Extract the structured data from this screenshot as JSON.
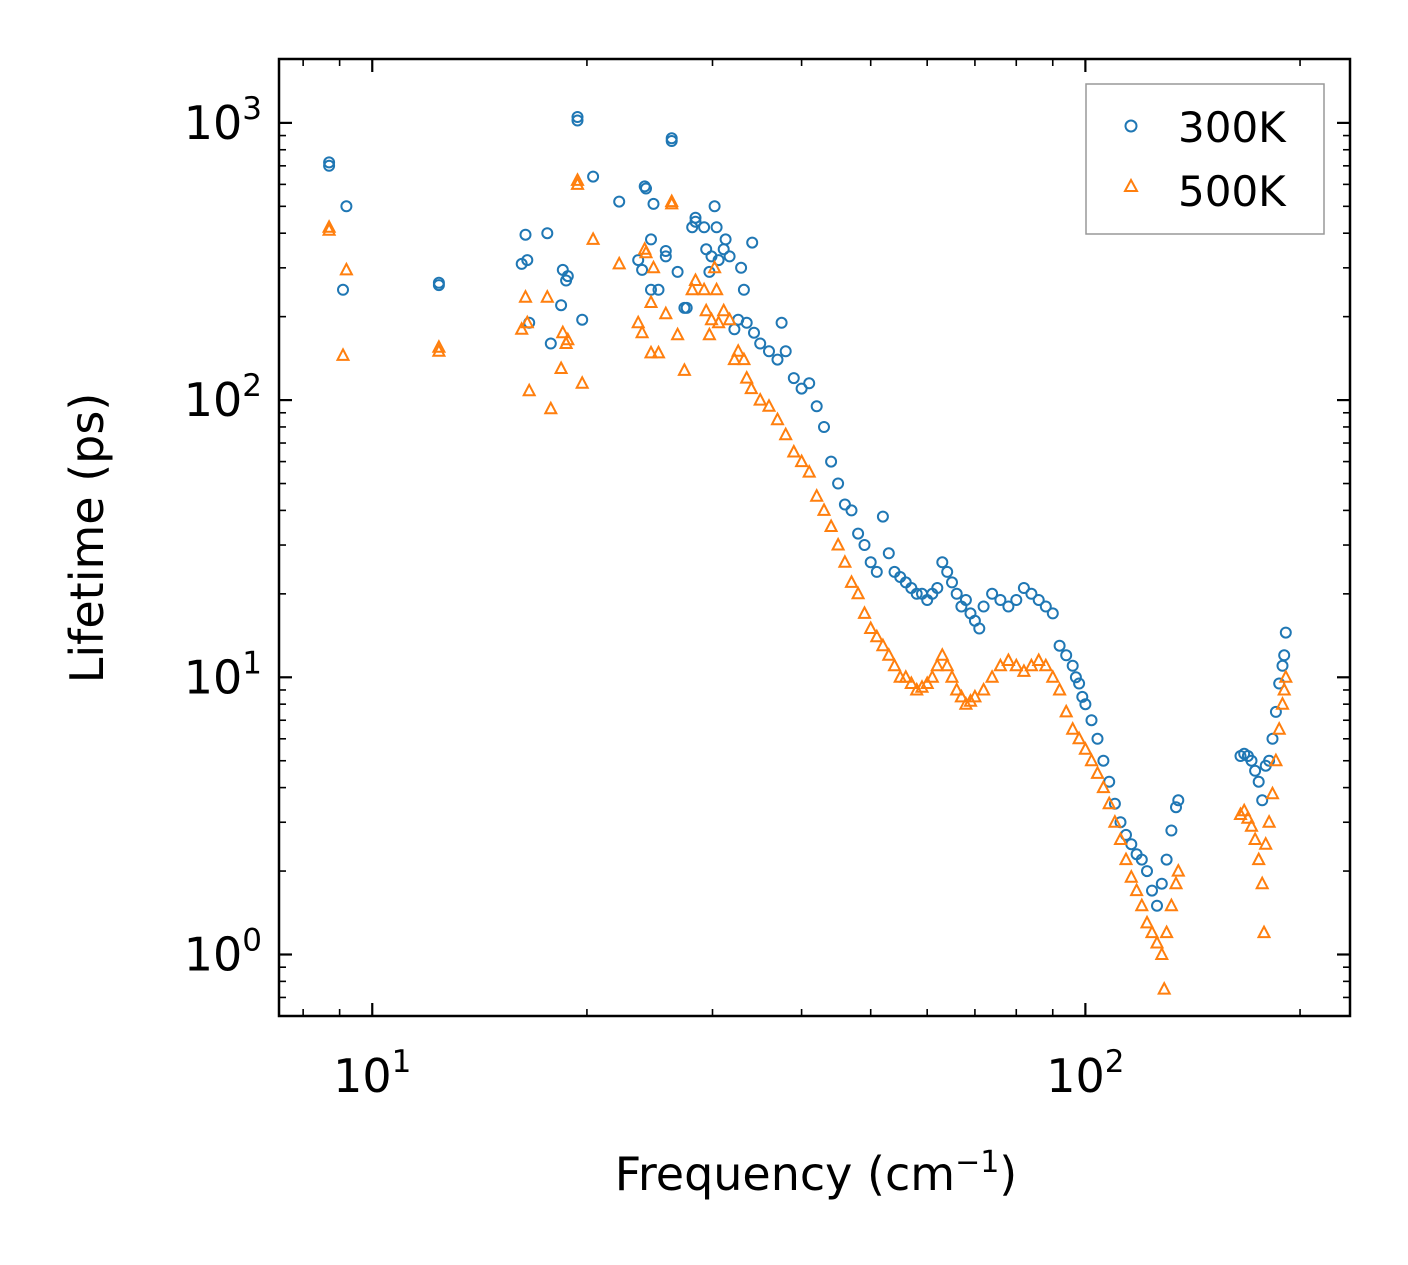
{
  "chart_data": {
    "type": "scatter",
    "title": "",
    "xlabel_base": "Frequency (cm",
    "xlabel_sup": "−1",
    "xlabel_tail": ")",
    "ylabel": "Lifetime (ps)",
    "xscale": "log",
    "yscale": "log",
    "xlim": [
      7.4,
      235
    ],
    "ylim": [
      0.6,
      1700
    ],
    "x_ticks": [
      {
        "value": 10,
        "base": "10",
        "exp": "1"
      },
      {
        "value": 100,
        "base": "10",
        "exp": "2"
      }
    ],
    "y_ticks": [
      {
        "value": 1,
        "base": "10",
        "exp": "0"
      },
      {
        "value": 10,
        "base": "10",
        "exp": "1"
      },
      {
        "value": 100,
        "base": "10",
        "exp": "2"
      },
      {
        "value": 1000,
        "base": "10",
        "exp": "3"
      }
    ],
    "legend_position": "top-right",
    "series": [
      {
        "name": "300K",
        "marker": "circle-open",
        "color": "#1f77b4",
        "points": [
          [
            8.7,
            720
          ],
          [
            8.7,
            700
          ],
          [
            9.2,
            500
          ],
          [
            9.1,
            250
          ],
          [
            12.4,
            260
          ],
          [
            12.4,
            265
          ],
          [
            16.2,
            310
          ],
          [
            16.4,
            395
          ],
          [
            16.5,
            320
          ],
          [
            16.6,
            190
          ],
          [
            17.6,
            400
          ],
          [
            17.8,
            160
          ],
          [
            18.4,
            220
          ],
          [
            18.5,
            295
          ],
          [
            18.7,
            270
          ],
          [
            18.8,
            280
          ],
          [
            19.4,
            1050
          ],
          [
            19.4,
            1020
          ],
          [
            19.7,
            195
          ],
          [
            20.4,
            640
          ],
          [
            22.2,
            520
          ],
          [
            23.6,
            320
          ],
          [
            23.9,
            295
          ],
          [
            24.1,
            590
          ],
          [
            24.2,
            580
          ],
          [
            24.6,
            380
          ],
          [
            24.6,
            250
          ],
          [
            24.8,
            510
          ],
          [
            25.2,
            250
          ],
          [
            25.8,
            345
          ],
          [
            25.8,
            330
          ],
          [
            26.3,
            880
          ],
          [
            26.3,
            860
          ],
          [
            26.8,
            290
          ],
          [
            27.4,
            215
          ],
          [
            27.6,
            215
          ],
          [
            28.1,
            420
          ],
          [
            28.4,
            455
          ],
          [
            28.4,
            440
          ],
          [
            29.2,
            420
          ],
          [
            29.4,
            350
          ],
          [
            29.7,
            290
          ],
          [
            29.9,
            330
          ],
          [
            30.2,
            500
          ],
          [
            30.4,
            420
          ],
          [
            30.6,
            320
          ],
          [
            31.1,
            350
          ],
          [
            31.3,
            380
          ],
          [
            31.7,
            330
          ],
          [
            32.2,
            180
          ],
          [
            32.6,
            195
          ],
          [
            32.9,
            300
          ],
          [
            33.2,
            250
          ],
          [
            33.5,
            190
          ],
          [
            34.1,
            370
          ],
          [
            34.3,
            175
          ],
          [
            35,
            160
          ],
          [
            36,
            150
          ],
          [
            37,
            140
          ],
          [
            37.5,
            190
          ],
          [
            38,
            150
          ],
          [
            39,
            120
          ],
          [
            40,
            110
          ],
          [
            41,
            115
          ],
          [
            42,
            95
          ],
          [
            43,
            80
          ],
          [
            44,
            60
          ],
          [
            45,
            50
          ],
          [
            46,
            42
          ],
          [
            47,
            40
          ],
          [
            48,
            33
          ],
          [
            49,
            30
          ],
          [
            50,
            26
          ],
          [
            51,
            24
          ],
          [
            52,
            38
          ],
          [
            53,
            28
          ],
          [
            54,
            24
          ],
          [
            55,
            23
          ],
          [
            56,
            22
          ],
          [
            57,
            21
          ],
          [
            58,
            20
          ],
          [
            59,
            20
          ],
          [
            60,
            19
          ],
          [
            61,
            20
          ],
          [
            62,
            21
          ],
          [
            63,
            26
          ],
          [
            64,
            24
          ],
          [
            65,
            22
          ],
          [
            66,
            20
          ],
          [
            67,
            18
          ],
          [
            68,
            19
          ],
          [
            69,
            17
          ],
          [
            70,
            16
          ],
          [
            71,
            15
          ],
          [
            72,
            18
          ],
          [
            74,
            20
          ],
          [
            76,
            19
          ],
          [
            78,
            18
          ],
          [
            80,
            19
          ],
          [
            82,
            21
          ],
          [
            84,
            20
          ],
          [
            86,
            19
          ],
          [
            88,
            18
          ],
          [
            90,
            17
          ],
          [
            92,
            13
          ],
          [
            94,
            12
          ],
          [
            96,
            11
          ],
          [
            97,
            10
          ],
          [
            98,
            9.5
          ],
          [
            99,
            8.5
          ],
          [
            100,
            8
          ],
          [
            102,
            7
          ],
          [
            104,
            6
          ],
          [
            106,
            5
          ],
          [
            108,
            4.2
          ],
          [
            110,
            3.5
          ],
          [
            112,
            3
          ],
          [
            114,
            2.7
          ],
          [
            116,
            2.5
          ],
          [
            118,
            2.3
          ],
          [
            120,
            2.2
          ],
          [
            122,
            2
          ],
          [
            124,
            1.7
          ],
          [
            126,
            1.5
          ],
          [
            128,
            1.8
          ],
          [
            130,
            2.2
          ],
          [
            132,
            2.8
          ],
          [
            134,
            3.4
          ],
          [
            135,
            3.6
          ],
          [
            165,
            5.2
          ],
          [
            167,
            5.3
          ],
          [
            169,
            5.2
          ],
          [
            171,
            5.0
          ],
          [
            173,
            4.6
          ],
          [
            175,
            4.2
          ],
          [
            177,
            3.6
          ],
          [
            179,
            4.8
          ],
          [
            181,
            5.0
          ],
          [
            183,
            6.0
          ],
          [
            185,
            7.5
          ],
          [
            187,
            9.5
          ],
          [
            189,
            11
          ],
          [
            190,
            12
          ],
          [
            191,
            14.5
          ]
        ]
      },
      {
        "name": "500K",
        "marker": "triangle-open",
        "color": "#ff7f0e",
        "points": [
          [
            8.7,
            420
          ],
          [
            8.7,
            410
          ],
          [
            9.2,
            295
          ],
          [
            9.1,
            145
          ],
          [
            12.4,
            150
          ],
          [
            12.4,
            155
          ],
          [
            16.2,
            180
          ],
          [
            16.4,
            235
          ],
          [
            16.5,
            190
          ],
          [
            16.6,
            108
          ],
          [
            17.6,
            235
          ],
          [
            17.8,
            93
          ],
          [
            18.4,
            130
          ],
          [
            18.5,
            175
          ],
          [
            18.7,
            160
          ],
          [
            18.8,
            165
          ],
          [
            19.4,
            620
          ],
          [
            19.4,
            600
          ],
          [
            19.7,
            115
          ],
          [
            20.4,
            380
          ],
          [
            22.2,
            310
          ],
          [
            23.6,
            190
          ],
          [
            23.9,
            175
          ],
          [
            24.1,
            350
          ],
          [
            24.2,
            340
          ],
          [
            24.6,
            225
          ],
          [
            24.6,
            148
          ],
          [
            24.8,
            300
          ],
          [
            25.2,
            148
          ],
          [
            25.8,
            205
          ],
          [
            26.3,
            520
          ],
          [
            26.3,
            510
          ],
          [
            26.8,
            172
          ],
          [
            27.4,
            128
          ],
          [
            28.1,
            250
          ],
          [
            28.4,
            270
          ],
          [
            29.2,
            250
          ],
          [
            29.4,
            210
          ],
          [
            29.7,
            172
          ],
          [
            29.9,
            195
          ],
          [
            30.2,
            300
          ],
          [
            30.4,
            250
          ],
          [
            30.6,
            190
          ],
          [
            31.1,
            210
          ],
          [
            31.7,
            195
          ],
          [
            32.2,
            140
          ],
          [
            32.6,
            150
          ],
          [
            33.2,
            140
          ],
          [
            33.5,
            120
          ],
          [
            34,
            110
          ],
          [
            35,
            100
          ],
          [
            36,
            95
          ],
          [
            37,
            85
          ],
          [
            38,
            75
          ],
          [
            39,
            65
          ],
          [
            40,
            60
          ],
          [
            41,
            55
          ],
          [
            42,
            45
          ],
          [
            43,
            40
          ],
          [
            44,
            35
          ],
          [
            45,
            30
          ],
          [
            46,
            26
          ],
          [
            47,
            22
          ],
          [
            48,
            20
          ],
          [
            49,
            17
          ],
          [
            50,
            15
          ],
          [
            51,
            14
          ],
          [
            52,
            13
          ],
          [
            53,
            12
          ],
          [
            54,
            11
          ],
          [
            55,
            10
          ],
          [
            56,
            10
          ],
          [
            57,
            9.5
          ],
          [
            58,
            9
          ],
          [
            59,
            9.2
          ],
          [
            60,
            9.5
          ],
          [
            61,
            10
          ],
          [
            62,
            11
          ],
          [
            63,
            12
          ],
          [
            64,
            11
          ],
          [
            65,
            10
          ],
          [
            66,
            9
          ],
          [
            67,
            8.5
          ],
          [
            68,
            8
          ],
          [
            69,
            8.2
          ],
          [
            70,
            8.5
          ],
          [
            72,
            9
          ],
          [
            74,
            10
          ],
          [
            76,
            11
          ],
          [
            78,
            11.5
          ],
          [
            80,
            11
          ],
          [
            82,
            10.5
          ],
          [
            84,
            11
          ],
          [
            86,
            11.5
          ],
          [
            88,
            11
          ],
          [
            90,
            10
          ],
          [
            92,
            9
          ],
          [
            94,
            7.5
          ],
          [
            96,
            6.5
          ],
          [
            98,
            6
          ],
          [
            100,
            5.5
          ],
          [
            102,
            5
          ],
          [
            104,
            4.5
          ],
          [
            106,
            4
          ],
          [
            108,
            3.5
          ],
          [
            110,
            3
          ],
          [
            112,
            2.6
          ],
          [
            114,
            2.2
          ],
          [
            116,
            1.9
          ],
          [
            118,
            1.7
          ],
          [
            120,
            1.5
          ],
          [
            122,
            1.3
          ],
          [
            124,
            1.2
          ],
          [
            126,
            1.1
          ],
          [
            128,
            1.0
          ],
          [
            129,
            0.75
          ],
          [
            130,
            1.2
          ],
          [
            132,
            1.5
          ],
          [
            134,
            1.8
          ],
          [
            135,
            2.0
          ],
          [
            165,
            3.2
          ],
          [
            167,
            3.3
          ],
          [
            169,
            3.1
          ],
          [
            171,
            2.9
          ],
          [
            173,
            2.6
          ],
          [
            175,
            2.2
          ],
          [
            177,
            1.8
          ],
          [
            178,
            1.2
          ],
          [
            179,
            2.5
          ],
          [
            181,
            3.0
          ],
          [
            183,
            3.8
          ],
          [
            185,
            5.0
          ],
          [
            187,
            6.5
          ],
          [
            189,
            8.0
          ],
          [
            190,
            9.0
          ],
          [
            191,
            10
          ]
        ]
      }
    ]
  }
}
